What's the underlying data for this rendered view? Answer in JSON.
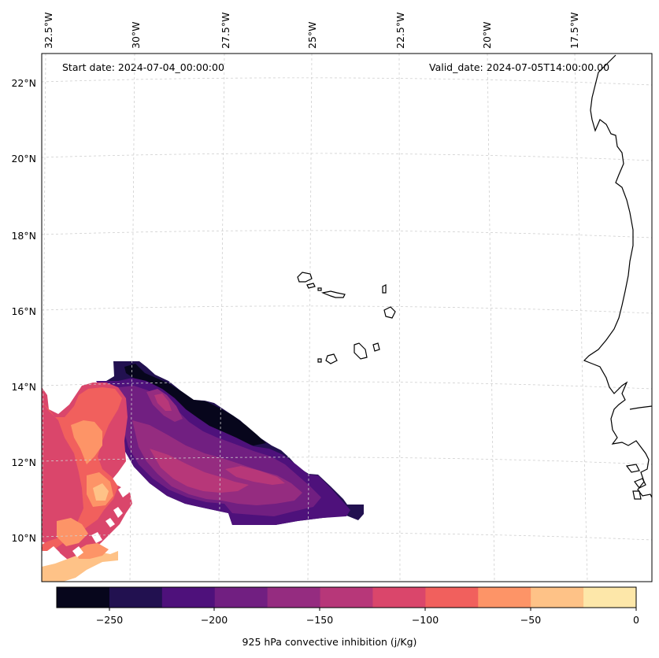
{
  "map": {
    "start_date": "Start date: 2024-07-04_00:00:00",
    "valid_date": "Valid_date: 2024-07-05T14:00:00.00",
    "lon_labels": [
      "32.5°W",
      "30°W",
      "27.5°W",
      "25°W",
      "22.5°W",
      "20°W",
      "17.5°W"
    ],
    "lat_labels": [
      "22°N",
      "20°N",
      "18°N",
      "16°N",
      "14°N",
      "12°N",
      "10°N"
    ],
    "colorbar": {
      "label": "925 hPa convective inhibition (j/Kg)",
      "tick_labels": [
        "−250",
        "−200",
        "−150",
        "−100",
        "−50",
        "0"
      ],
      "levels": [
        -275,
        -250,
        -225,
        -200,
        -175,
        -150,
        -125,
        -100,
        -75,
        -50,
        -25,
        0
      ],
      "colors": [
        "#07061c",
        "#221150",
        "#4e117b",
        "#711f81",
        "#952c80",
        "#b73779",
        "#da466b",
        "#f1605d",
        "#fd9467",
        "#fec287",
        "#fde7a9"
      ]
    }
  }
}
